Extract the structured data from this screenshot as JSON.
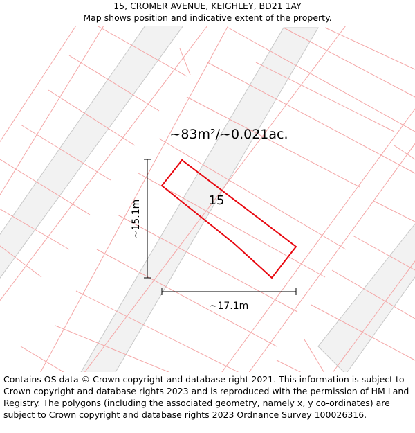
{
  "header": {
    "address": "15, CROMER AVENUE, KEIGHLEY, BD21 1AY",
    "subtitle": "Map shows position and indicative extent of the property."
  },
  "map": {
    "area_label": "~83m²/~0.021ac.",
    "plot_number": "15",
    "height_measure": "~15.1m",
    "width_measure": "~17.1m",
    "colors": {
      "boundary": "#f4a6a6",
      "building_fill": "#f2f2f2",
      "building_stroke": "#c8c8c8",
      "highlight": "#e8070f",
      "dimension": "#000000"
    }
  },
  "footer": {
    "attribution": "Contains OS data © Crown copyright and database right 2021. This information is subject to Crown copyright and database rights 2023 and is reproduced with the permission of HM Land Registry. The polygons (including the associated geometry, namely x, y co-ordinates) are subject to Crown copyright and database rights 2023 Ordnance Survey 100026316."
  }
}
